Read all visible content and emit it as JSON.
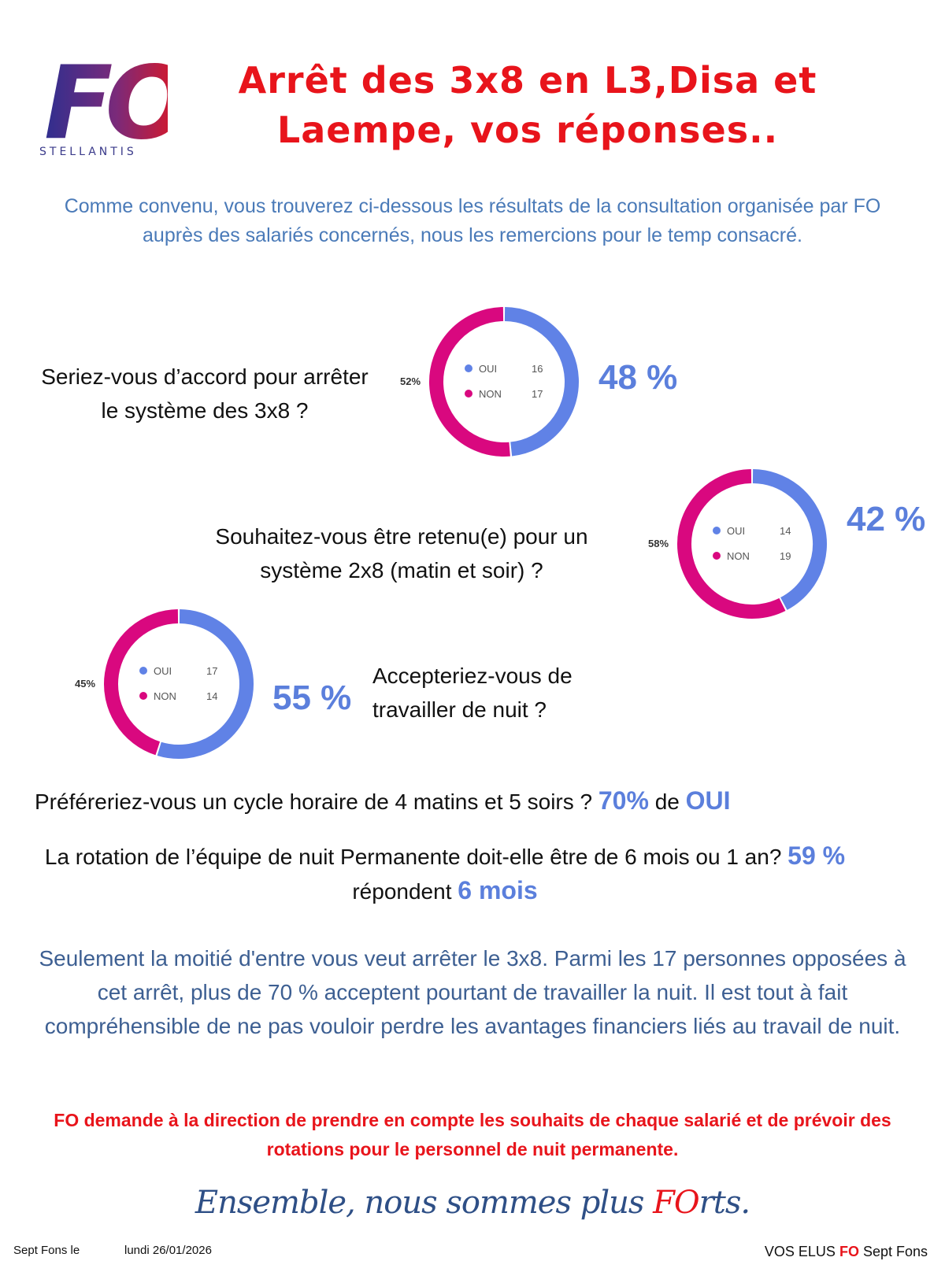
{
  "logo": {
    "text": "FO",
    "subtitle": "STELLANTIS"
  },
  "title": {
    "line1": "Arrêt des 3x8 en L3,Disa et",
    "line2": "Laempe, vos réponses.."
  },
  "intro": "Comme convenu, vous trouverez ci-dessous les résultats de la consultation organisée par FO auprès des salariés concernés, nous les remercions pour le temp consacré.",
  "colors": {
    "oui": "#6082e6",
    "non": "#d9087f",
    "title": "#e8141b",
    "accent": "#5b7fdc"
  },
  "questions": [
    {
      "text": "Seriez-vous d’accord pour arrêter le système des 3x8 ?",
      "big": "48 %",
      "donut": {
        "oui_label": "OUI",
        "oui": 16,
        "non_label": "NON",
        "non": 17,
        "non_pct": "52%"
      }
    },
    {
      "text": "Souhaitez-vous être retenu(e) pour un système 2x8 (matin et soir) ?",
      "big": "42 %",
      "donut": {
        "oui_label": "OUI",
        "oui": 14,
        "non_label": "NON",
        "non": 19,
        "non_pct": "58%"
      }
    },
    {
      "text": "Accepteriez-vous de travailler de nuit ?",
      "big": "55 %",
      "donut": {
        "oui_label": "OUI",
        "oui": 17,
        "non_label": "NON",
        "non": 14,
        "non_pct": "45%"
      }
    }
  ],
  "q4": {
    "text": "Préféreriez-vous un cycle horaire de 4 matins et 5 soirs ?",
    "pct": "70%",
    "mid": "de",
    "answer": "OUI"
  },
  "q5": {
    "text": "La rotation de l’équipe de nuit Permanente doit-elle être de 6 mois ou 1 an?",
    "pct": "59 %",
    "mid": "répondent",
    "answer": "6 mois"
  },
  "conclusion": "Seulement la moitié d'entre vous veut arrêter le 3x8. Parmi les 17 personnes opposées à cet arrêt, plus de 70 % acceptent pourtant de travailler la nuit. Il est tout à fait compréhensible de ne pas vouloir perdre les avantages financiers liés au travail de nuit.",
  "demand": "FO demande à la direction de prendre en compte les souhaits de chaque salarié et de prévoir des rotations pour le personnel de nuit permanente.",
  "slogan": {
    "before": "Ensemble, nous sommes plus ",
    "fo": "FO",
    "after": "rts."
  },
  "footer": {
    "place": "Sept Fons le",
    "date": "lundi 26/01/2026",
    "sig_before": "VOS ELUS ",
    "sig_fo": "FO",
    "sig_after": " Sept Fons"
  }
}
